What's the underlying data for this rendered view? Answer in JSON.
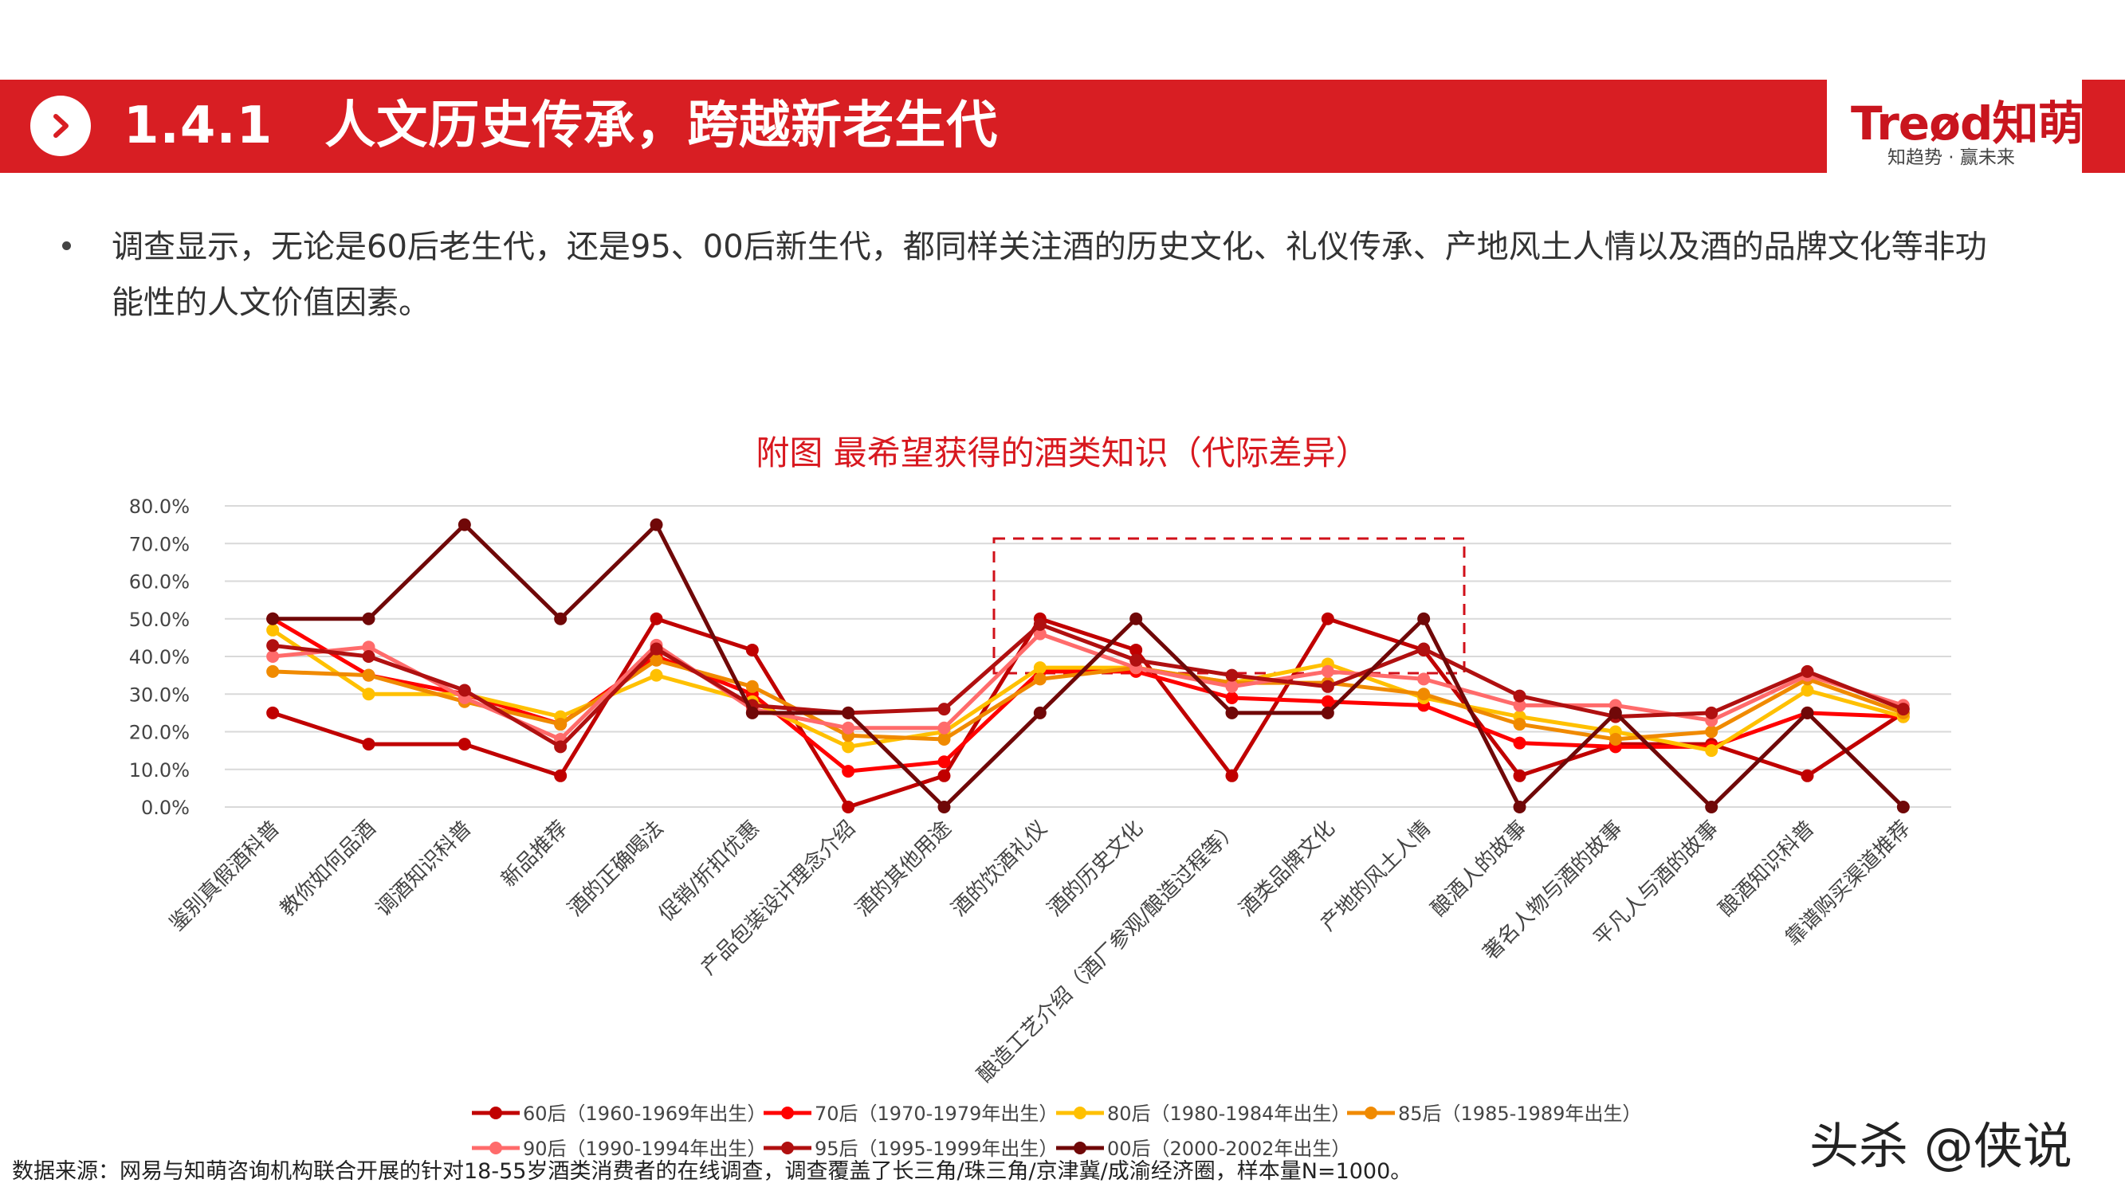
{
  "header": {
    "title": "1.4.1　人文历史传承，跨越新老生代",
    "accent_color": "#d81e23",
    "icon": "chevron-right-icon"
  },
  "logo": {
    "brand": "Treød知萌",
    "tagline": "知趋势 · 赢未来"
  },
  "intro": {
    "text": "调查显示，无论是60后老生代，还是95、00后新生代，都同样关注酒的历史文化、礼仪传承、产地风土人情以及酒的品牌文化等非功能性的人文价值因素。"
  },
  "chart_data": {
    "type": "line",
    "title": "附图  最希望获得的酒类知识（代际差异）",
    "xlabel": "",
    "ylabel": "",
    "ylim": [
      0,
      80
    ],
    "yticks": [
      "0.0%",
      "10.0%",
      "20.0%",
      "30.0%",
      "40.0%",
      "50.0%",
      "60.0%",
      "70.0%",
      "80.0%"
    ],
    "grid": true,
    "legend_position": "bottom",
    "categories": [
      "鉴别真假酒科普",
      "教你如何品酒",
      "调酒知识科普",
      "新品推荐",
      "酒的正确喝法",
      "促销/折扣优惠",
      "产品包装设计理念介绍",
      "酒的其他用途",
      "酒的饮酒礼仪",
      "酒的历史文化",
      "酿造工艺介绍（酒厂参观/酿造过程等）",
      "酒类品牌文化",
      "产地的风土人情",
      "酿酒人的故事",
      "著名人物与酒的故事",
      "平凡人与酒的故事",
      "酿酒知识科普",
      "靠谱购买渠道推荐"
    ],
    "series": [
      {
        "name": "60后（1960-1969年出生）",
        "color": "#c00000",
        "values": [
          25,
          16.7,
          16.7,
          8.3,
          50,
          41.7,
          0,
          8.3,
          50,
          41.7,
          8.3,
          50,
          41.7,
          8.3,
          16.7,
          16.7,
          8.3,
          25
        ]
      },
      {
        "name": "70后（1970-1979年出生）",
        "color": "#ff0000",
        "values": [
          50,
          35,
          30,
          22,
          40,
          30,
          9.5,
          12,
          36,
          36,
          29,
          28,
          27,
          17,
          16,
          16,
          25,
          24
        ]
      },
      {
        "name": "80后（1980-1984年出生）",
        "color": "#ffc000",
        "values": [
          47,
          30,
          30,
          24,
          35,
          28,
          16,
          20,
          37,
          37,
          33,
          38,
          29,
          24,
          20,
          15,
          31,
          24
        ]
      },
      {
        "name": "85后（1985-1989年出生）",
        "color": "#f08a00",
        "values": [
          36,
          35,
          28,
          22,
          39,
          32,
          19,
          18,
          34,
          37,
          33,
          33,
          30,
          22,
          18,
          20,
          34,
          25
        ]
      },
      {
        "name": "90后（1990-1994年出生）",
        "color": "#ff6b6b",
        "values": [
          40,
          42.5,
          29,
          18,
          43,
          26,
          21,
          21,
          46,
          37,
          32,
          36,
          34,
          27,
          27,
          23,
          35,
          27
        ]
      },
      {
        "name": "95后（1995-1999年出生）",
        "color": "#b01010",
        "values": [
          42.9,
          40,
          31,
          16,
          42,
          27,
          25,
          26,
          48.5,
          39,
          35,
          32,
          42,
          29.5,
          24,
          25,
          36,
          26
        ]
      },
      {
        "name": "00后（2000-2002年出生）",
        "color": "#700808",
        "values": [
          50,
          50,
          75,
          50,
          75,
          25,
          25,
          0,
          25,
          50,
          25,
          25,
          50,
          0,
          25,
          0,
          25,
          0
        ]
      }
    ]
  },
  "source": {
    "text": "数据来源：网易与知萌咨询机构联合开展的针对18-55岁酒类消费者的在线调查，调查覆盖了长三角/珠三角/京津冀/成渝经济圈，样本量N=1000。"
  },
  "watermark": {
    "text": "头杀 @侠说"
  }
}
